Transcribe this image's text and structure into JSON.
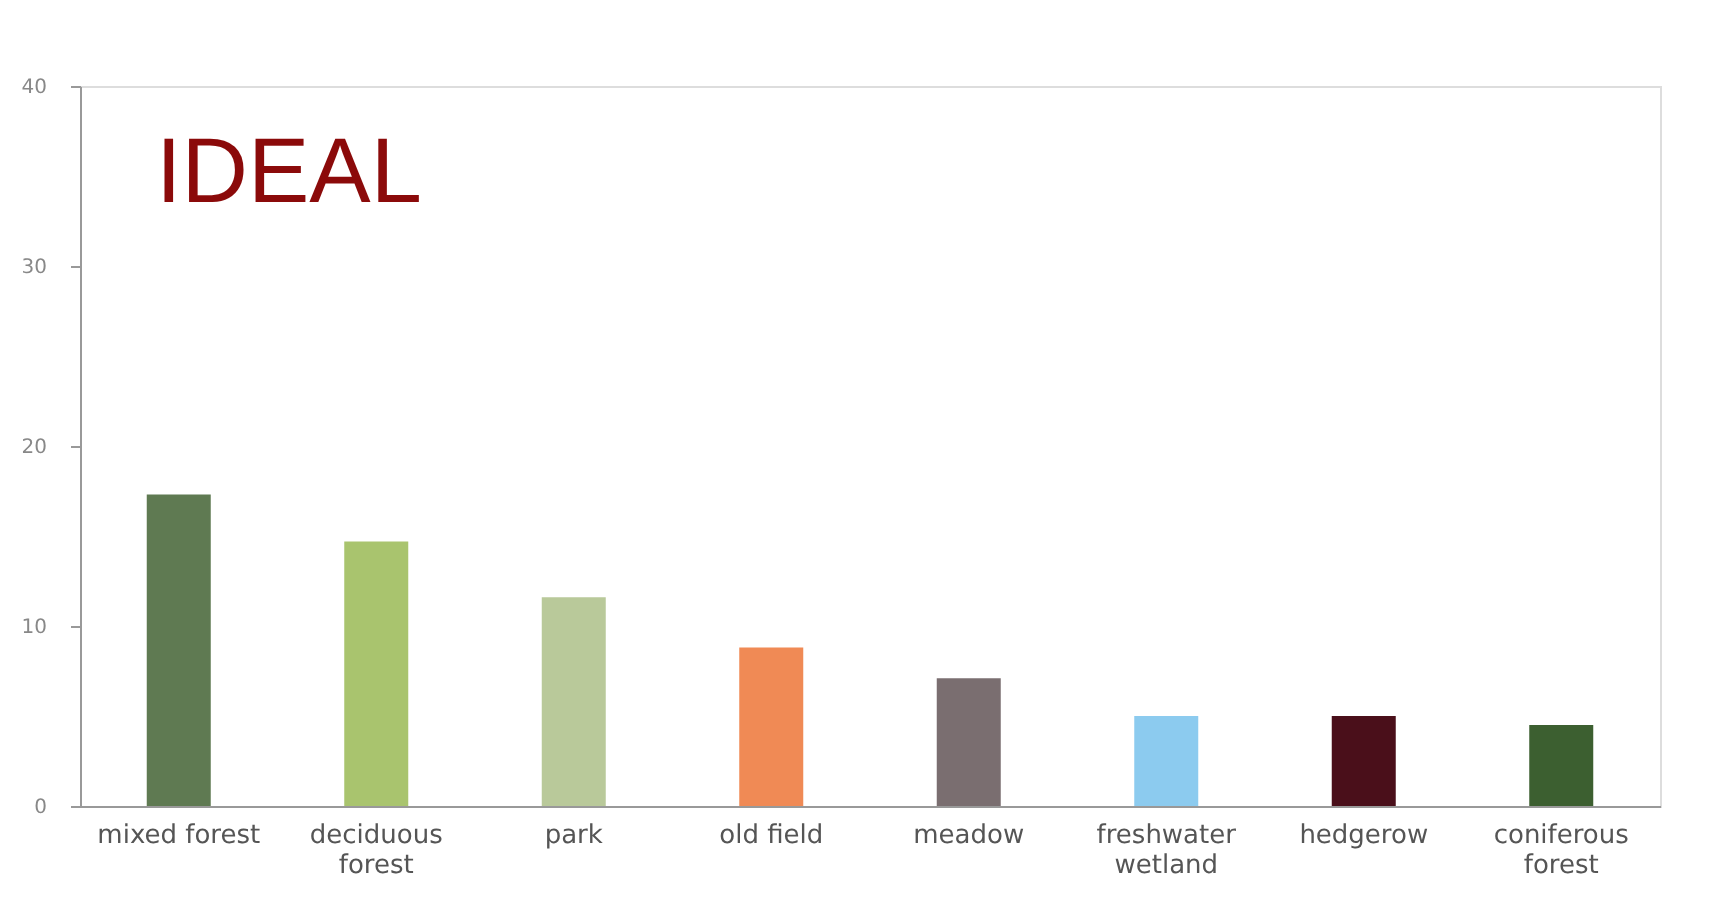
{
  "chart_data": {
    "type": "bar",
    "title": "IDEAL",
    "categories": [
      "mixed forest",
      "deciduous forest",
      "park",
      "old field",
      "meadow",
      "freshwater wetland",
      "hedgerow",
      "coniferous forest"
    ],
    "values": [
      17.3,
      14.7,
      11.6,
      8.8,
      7.1,
      5.0,
      5.0,
      4.5
    ],
    "colors": [
      "#5f7a52",
      "#a9c46e",
      "#b9c99a",
      "#f08a55",
      "#7a6e70",
      "#8ccbef",
      "#4a0f1a",
      "#3c5f30"
    ],
    "ylim": [
      0,
      40
    ],
    "yticks": [
      0,
      10,
      20,
      30,
      40
    ],
    "grid": false
  }
}
